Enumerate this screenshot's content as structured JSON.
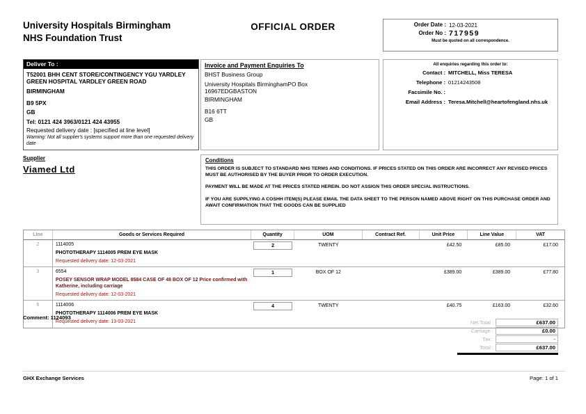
{
  "colors": {
    "header_bar_bg": "#000000",
    "delivery_red": "#9e1414",
    "row2_desc_maroon": "#6e1515"
  },
  "header": {
    "org_line1": "University Hospitals Birmingham",
    "org_line2": "NHS Foundation Trust",
    "title": "OFFICIAL ORDER",
    "order_date_label": "Order Date :",
    "order_date": "12-03-2021",
    "order_no_label": "Order No :",
    "order_no": "717959",
    "order_note": "Must be quoted on all correspondence."
  },
  "deliver_to": {
    "heading": "Deliver To :",
    "address": "T52001 BHH CENT STORE/CONTINGENCY YGU YARDLEY GREEN HOSPITAL YARDLEY GREEN ROAD",
    "city": "BIRMINGHAM",
    "postcode": "B9 5PX",
    "country": "GB",
    "tel": "Tel: 0121 424 3963/0121 424 43955",
    "requested": "Requested delivery date : [specified at line level]",
    "warning": "Warning: Not all supplier's systems support more than one requested delivery date"
  },
  "invoice_to": {
    "heading": "Invoice and Payment Enquiries To",
    "lines": [
      "BHST Business Group",
      "University Hospitals BirminghamPO Box",
      "16967EDGBASTON",
      "BIRMINGHAM",
      "B16 6TT",
      "GB"
    ]
  },
  "enquiries": {
    "heading": "All enquiries regarding this order to:",
    "contact_label": "Contact :",
    "contact": "MITCHELL, Miss TERESA",
    "telephone_label": "Telephone :",
    "telephone": "01214243508",
    "facsimile_label": "Facsimile No. :",
    "facsimile": "",
    "email_label": "Email Address :",
    "email": "Teresa.Mitchell@heartofengland.nhs.uk"
  },
  "supplier": {
    "heading": "Supplier",
    "name": "Viamed Ltd"
  },
  "conditions": {
    "heading": "Conditions",
    "para1": "THIS ORDER IS SUBJECT TO STANDARD NHS TERMS AND CONDITIONS. IF PRICES STATED ON THIS ORDER ARE INCORRECT ANY REVISED PRICES MUST BE AUTHORISED BY THE BUYER PRIOR TO ORDER EXECUTION.",
    "para2": "PAYMENT WILL BE MADE AT THE PRICES STATED HEREIN. DO NOT ASSIGN THIS ORDER SPECIAL INSTRUCTIONS.",
    "para3": "IF YOU ARE SUPPLYING A COSHH ITEM(S) PLEASE EMAIL THE DATA SHEET TO THE PERSON NAMED ABOVE RIGHT ON THIS PURCHASE ORDER AND AWAIT CONFIRMATION THAT THE GOODS CAN BE SUPPLIED"
  },
  "table": {
    "headers": [
      "Line",
      "Goods or Services Required",
      "Quantity",
      "UOM",
      "Contract Ref.",
      "Unit Price",
      "Line Value",
      "VAT"
    ],
    "rows": [
      {
        "line": "2",
        "code": "1114005",
        "description": "PHOTOTHERAPY 1114005 PREM EYE MASK",
        "delivery": "Requested delivery date: 12-03-2021",
        "quantity": "2",
        "uom": "TWENTY",
        "contract_ref": "",
        "unit_price": "£42.50",
        "line_value": "£85.00",
        "vat": "£17.00"
      },
      {
        "line": "3",
        "code": "6554",
        "description": "POSEY SENSOR WRAP MODEL 8584 CASE OF 48 BOX OF 12 Price confirmed with Katherine, including carriage",
        "delivery": "Requested delivery date: 12-03-2021",
        "quantity": "1",
        "uom": "BOX OF 12",
        "contract_ref": "",
        "unit_price": "£389.00",
        "line_value": "£389.00",
        "vat": "£77.80"
      },
      {
        "line": "6",
        "code": "1114006",
        "description": "PHOTOTHERAPY 1114006 PREM EYE MASK",
        "delivery": "Requested delivery date: 13-03-2021",
        "quantity": "4",
        "uom": "TWENTY",
        "contract_ref": "",
        "unit_price": "£40.75",
        "line_value": "£163.00",
        "vat": "£32.60"
      }
    ]
  },
  "comment": "Comment: 1124093",
  "totals": {
    "net_label": "Net Total :",
    "net": "£637.00",
    "carriage_label": "Carriage :",
    "carriage": "£0.00",
    "tax_label": "Tax :",
    "tax": "-",
    "total_label": "Total :",
    "total": "£637.00"
  },
  "footer": {
    "left": "GHX Exchange Services",
    "right": "Page: 1 of 1"
  }
}
